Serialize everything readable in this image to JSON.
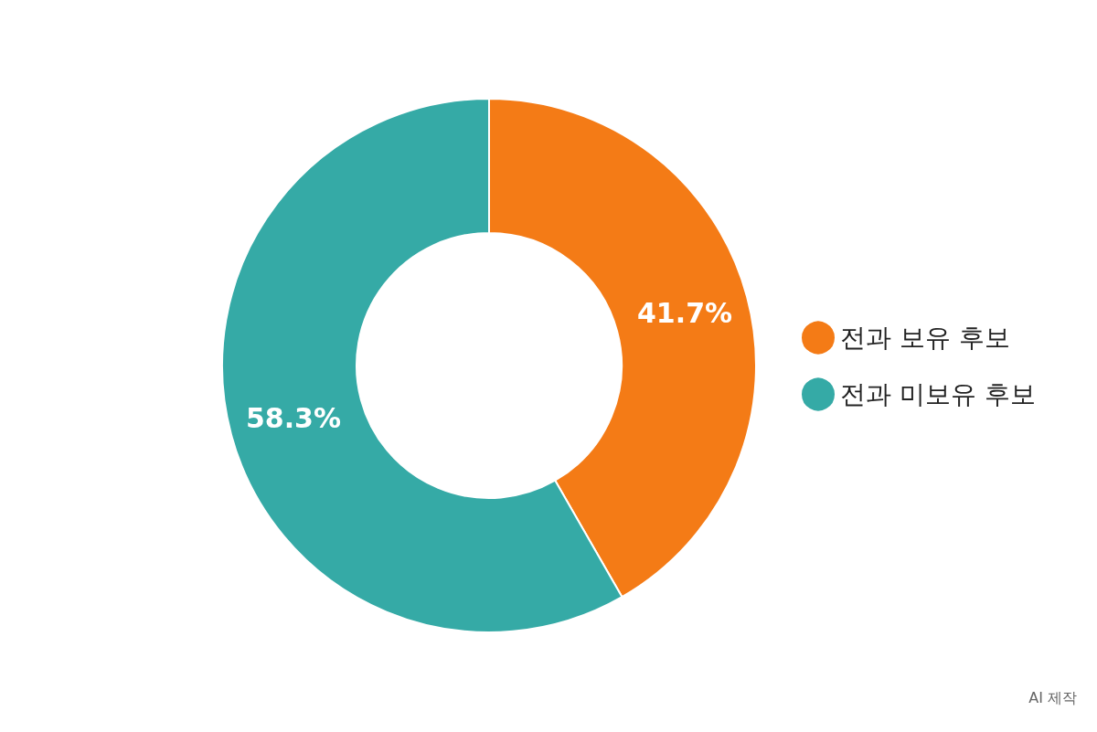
{
  "chart_data": {
    "type": "donut",
    "categories": [
      "전과 보유 후보",
      "전과 미보유 후보"
    ],
    "values": [
      41.7,
      58.3
    ],
    "colors": [
      "#f47b16",
      "#35aaa6"
    ],
    "value_labels": [
      "41.7%",
      "58.3%"
    ],
    "legend": "right",
    "annotations": [
      "AI 제작"
    ]
  }
}
